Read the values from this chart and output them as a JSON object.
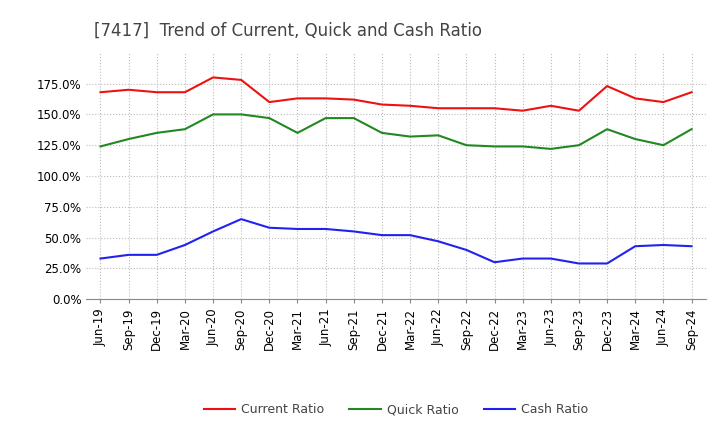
{
  "title": "[7417]  Trend of Current, Quick and Cash Ratio",
  "x_labels": [
    "Jun-19",
    "Sep-19",
    "Dec-19",
    "Mar-20",
    "Jun-20",
    "Sep-20",
    "Dec-20",
    "Mar-21",
    "Jun-21",
    "Sep-21",
    "Dec-21",
    "Mar-22",
    "Jun-22",
    "Sep-22",
    "Dec-22",
    "Mar-23",
    "Jun-23",
    "Sep-23",
    "Dec-23",
    "Mar-24",
    "Jun-24",
    "Sep-24"
  ],
  "current_ratio": [
    1.68,
    1.7,
    1.68,
    1.68,
    1.8,
    1.78,
    1.6,
    1.63,
    1.63,
    1.62,
    1.58,
    1.57,
    1.55,
    1.55,
    1.55,
    1.53,
    1.57,
    1.53,
    1.73,
    1.63,
    1.6,
    1.68
  ],
  "quick_ratio": [
    1.24,
    1.3,
    1.35,
    1.38,
    1.5,
    1.5,
    1.47,
    1.35,
    1.47,
    1.47,
    1.35,
    1.32,
    1.33,
    1.25,
    1.24,
    1.24,
    1.22,
    1.25,
    1.38,
    1.3,
    1.25,
    1.38
  ],
  "cash_ratio": [
    0.33,
    0.36,
    0.36,
    0.44,
    0.55,
    0.65,
    0.58,
    0.57,
    0.57,
    0.55,
    0.52,
    0.52,
    0.47,
    0.4,
    0.3,
    0.33,
    0.33,
    0.29,
    0.29,
    0.43,
    0.44,
    0.43
  ],
  "current_color": "#ee1111",
  "quick_color": "#228822",
  "cash_color": "#2222ee",
  "ylim": [
    0.0,
    2.0
  ],
  "yticks": [
    0.0,
    0.25,
    0.5,
    0.75,
    1.0,
    1.25,
    1.5,
    1.75
  ],
  "bg_color": "#ffffff",
  "grid_color": "#bbbbbb",
  "legend_labels": [
    "Current Ratio",
    "Quick Ratio",
    "Cash Ratio"
  ],
  "title_fontsize": 12,
  "label_fontsize": 9,
  "tick_fontsize": 8.5
}
